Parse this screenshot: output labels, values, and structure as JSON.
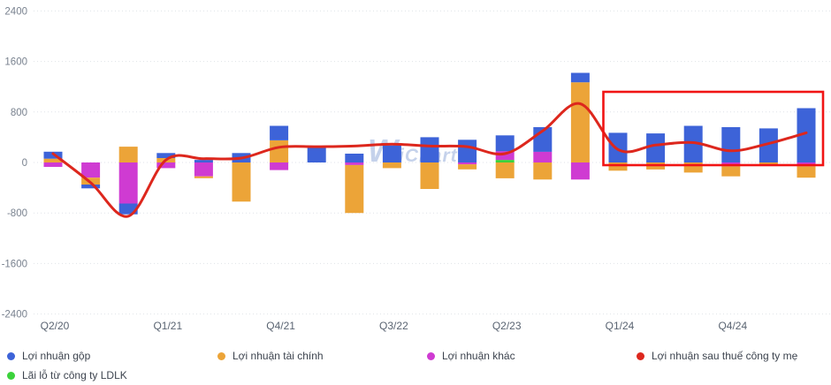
{
  "watermark": {
    "big": "W",
    "rest": "iChart"
  },
  "axis": {
    "y_ticks": [
      2400,
      1600,
      800,
      0,
      -800,
      -1600,
      -2400
    ],
    "x_tick_indices": [
      0,
      3,
      6,
      9,
      12,
      15,
      18
    ],
    "grid_color": "#dfe2e8",
    "y_label_color": "#79828f",
    "x_label_color": "#5a6472"
  },
  "chart_data": {
    "type": "bar+line",
    "stacked": true,
    "unit_hint": "billions VND (unlabeled)",
    "ylim": [
      -2400,
      2400
    ],
    "grid": true,
    "legend_position": "bottom",
    "categories": [
      "Q2/20",
      "Q3/20",
      "Q4/20",
      "Q1/21",
      "Q2/21",
      "Q3/21",
      "Q4/21",
      "Q1/22",
      "Q2/22",
      "Q3/22",
      "Q4/22",
      "Q1/23",
      "Q2/23",
      "Q3/23",
      "Q4/23",
      "Q1/24",
      "Q2/24",
      "Q3/24",
      "Q4/24",
      "Q1/25",
      "Q2/25"
    ],
    "visible_x_labels": [
      "Q2/20",
      "Q1/21",
      "Q4/21",
      "Q3/22",
      "Q2/23",
      "Q1/24",
      "Q4/24"
    ],
    "series": [
      {
        "id": "gross-profit",
        "name": "Lợi nhuận gộp",
        "type": "bar",
        "color": "#3d63d8",
        "values": [
          110,
          -60,
          -170,
          80,
          40,
          150,
          230,
          260,
          140,
          270,
          400,
          360,
          250,
          390,
          150,
          470,
          460,
          580,
          560,
          540,
          860
        ]
      },
      {
        "id": "financial-profit",
        "name": "Lợi nhuận tài chính",
        "type": "bar",
        "color": "#eca438",
        "values": [
          60,
          -110,
          250,
          70,
          -30,
          -620,
          350,
          0,
          -760,
          -90,
          -420,
          -80,
          -250,
          -270,
          1270,
          -130,
          -110,
          -160,
          -160,
          -50,
          -180
        ]
      },
      {
        "id": "other-profit",
        "name": "Lợi nhuận khác",
        "type": "bar",
        "color": "#cf3bd2",
        "values": [
          -70,
          -240,
          -650,
          -90,
          -220,
          0,
          -120,
          0,
          -40,
          0,
          0,
          -30,
          140,
          170,
          -270,
          0,
          0,
          0,
          -60,
          0,
          -60
        ]
      },
      {
        "id": "ldlk-profit-loss",
        "name": "Lãi lỗ từ công ty LDLK",
        "type": "bar",
        "color": "#3bd23b",
        "values": [
          0,
          0,
          0,
          0,
          0,
          0,
          0,
          0,
          0,
          0,
          0,
          0,
          40,
          0,
          0,
          0,
          0,
          0,
          0,
          0,
          0
        ]
      },
      {
        "id": "net-profit-parent",
        "name": "Lợi nhuận sau thuế công ty mẹ",
        "type": "line",
        "color": "#dd271d",
        "values": [
          140,
          -320,
          -850,
          40,
          60,
          70,
          240,
          250,
          260,
          290,
          260,
          250,
          140,
          500,
          930,
          205,
          275,
          315,
          185,
          300,
          470
        ]
      }
    ]
  },
  "legend": {
    "order": [
      "gross-profit",
      "financial-profit",
      "other-profit",
      "net-profit-parent",
      "ldlk-profit-loss"
    ]
  },
  "annotations": {
    "highlight_box": {
      "from_category": "Q1/24",
      "to_category": "Q2/25",
      "color": "#f11414"
    }
  }
}
